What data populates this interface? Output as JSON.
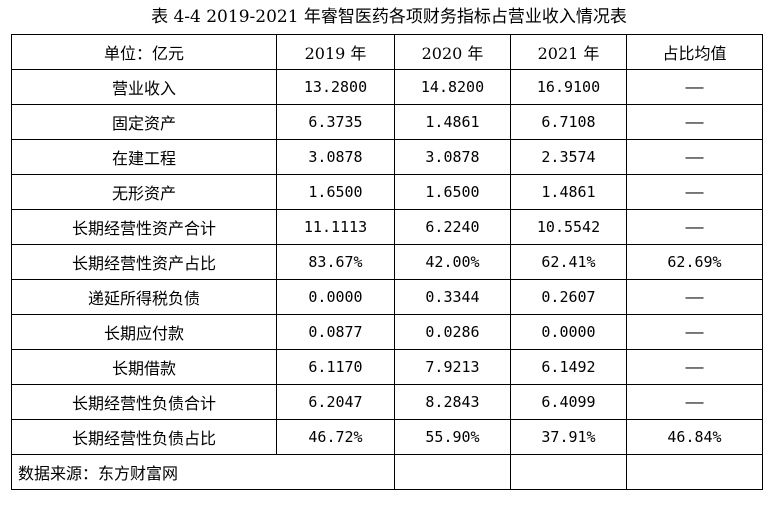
{
  "title": "表 4-4 2019-2021 年睿智医药各项财务指标占营业收入情况表",
  "header": {
    "unit": "单位：亿元",
    "y2019": "2019 年",
    "y2020": "2020 年",
    "y2021": "2021 年",
    "avg": "占比均值"
  },
  "rows": [
    {
      "label": "营业收入",
      "v2019": "13.2800",
      "v2020": "14.8200",
      "v2021": "16.9100",
      "avg": "——"
    },
    {
      "label": "固定资产",
      "v2019": "6.3735",
      "v2020": "1.4861",
      "v2021": "6.7108",
      "avg": "——"
    },
    {
      "label": "在建工程",
      "v2019": "3.0878",
      "v2020": "3.0878",
      "v2021": "2.3574",
      "avg": "——"
    },
    {
      "label": "无形资产",
      "v2019": "1.6500",
      "v2020": "1.6500",
      "v2021": "1.4861",
      "avg": "——"
    },
    {
      "label": "长期经营性资产合计",
      "v2019": "11.1113",
      "v2020": "6.2240",
      "v2021": "10.5542",
      "avg": "——"
    },
    {
      "label": "长期经营性资产占比",
      "v2019": "83.67%",
      "v2020": "42.00%",
      "v2021": "62.41%",
      "avg": "62.69%"
    },
    {
      "label": "递延所得税负债",
      "v2019": "0.0000",
      "v2020": "0.3344",
      "v2021": "0.2607",
      "avg": "——"
    },
    {
      "label": "长期应付款",
      "v2019": "0.0877",
      "v2020": "0.0286",
      "v2021": "0.0000",
      "avg": "——"
    },
    {
      "label": "长期借款",
      "v2019": "6.1170",
      "v2020": "7.9213",
      "v2021": "6.1492",
      "avg": "——"
    },
    {
      "label": "长期经营性负债合计",
      "v2019": "6.2047",
      "v2020": "8.2843",
      "v2021": "6.4099",
      "avg": "——"
    },
    {
      "label": "长期经营性负债占比",
      "v2019": "46.72%",
      "v2020": "55.90%",
      "v2021": "37.91%",
      "avg": "46.84%"
    }
  ],
  "source": "数据来源：东方财富网"
}
